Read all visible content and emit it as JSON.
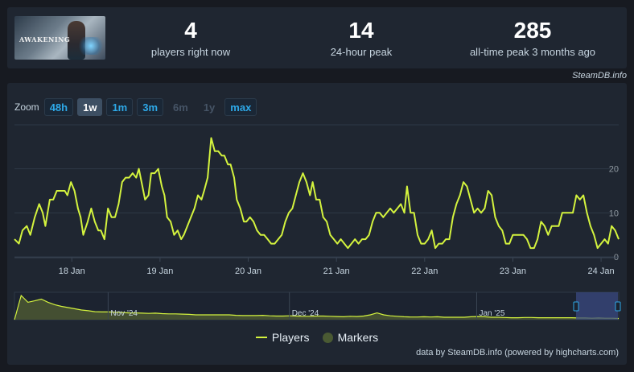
{
  "stats": [
    {
      "value": "4",
      "label": "players right now"
    },
    {
      "value": "14",
      "label": "24-hour peak"
    },
    {
      "value": "285",
      "label": "all-time peak 3 months ago"
    }
  ],
  "thumbnail": {
    "logo_text": "AWAKENING"
  },
  "credit_top": "SteamDB.info",
  "zoom": {
    "label": "Zoom",
    "buttons": [
      {
        "label": "48h",
        "state": "enabled"
      },
      {
        "label": "1w",
        "state": "active"
      },
      {
        "label": "1m",
        "state": "enabled"
      },
      {
        "label": "3m",
        "state": "enabled"
      },
      {
        "label": "6m",
        "state": "disabled"
      },
      {
        "label": "1y",
        "state": "disabled"
      },
      {
        "label": "max",
        "state": "enabled"
      }
    ]
  },
  "legend": {
    "players": "Players",
    "markers": "Markers"
  },
  "credit_bottom": "data by SteamDB.info (powered by highcharts.com)",
  "colors": {
    "series": "#d4f33e",
    "markers": "#4a5a33",
    "navigator_fill": "#4b5733",
    "nav_selection": "#3a4a80"
  },
  "chart_data": {
    "type": "line",
    "x_ticks": [
      "18 Jan",
      "19 Jan",
      "20 Jan",
      "21 Jan",
      "22 Jan",
      "23 Jan",
      "24 Jan"
    ],
    "y_ticks": [
      0,
      10,
      20
    ],
    "ylim": [
      0,
      30
    ],
    "xlim": [
      -0.65,
      6.2
    ],
    "series": [
      {
        "name": "Players",
        "points": [
          [
            -0.65,
            4
          ],
          [
            -0.6,
            3
          ],
          [
            -0.56,
            6
          ],
          [
            -0.51,
            7
          ],
          [
            -0.47,
            5
          ],
          [
            -0.42,
            9
          ],
          [
            -0.37,
            12
          ],
          [
            -0.33,
            10
          ],
          [
            -0.3,
            7
          ],
          [
            -0.25,
            13
          ],
          [
            -0.21,
            13
          ],
          [
            -0.17,
            15
          ],
          [
            -0.12,
            15
          ],
          [
            -0.08,
            15
          ],
          [
            -0.05,
            14
          ],
          [
            -0.01,
            17
          ],
          [
            0.03,
            15
          ],
          [
            0.07,
            11
          ],
          [
            0.1,
            9
          ],
          [
            0.13,
            5
          ],
          [
            0.18,
            8
          ],
          [
            0.22,
            11
          ],
          [
            0.26,
            8
          ],
          [
            0.3,
            6
          ],
          [
            0.33,
            6
          ],
          [
            0.37,
            4
          ],
          [
            0.41,
            11
          ],
          [
            0.45,
            9
          ],
          [
            0.49,
            9
          ],
          [
            0.53,
            12
          ],
          [
            0.57,
            17
          ],
          [
            0.61,
            18
          ],
          [
            0.65,
            18
          ],
          [
            0.69,
            19
          ],
          [
            0.73,
            18
          ],
          [
            0.76,
            20
          ],
          [
            0.8,
            16
          ],
          [
            0.83,
            13
          ],
          [
            0.87,
            14
          ],
          [
            0.9,
            19
          ],
          [
            0.94,
            19
          ],
          [
            0.98,
            20
          ],
          [
            1.02,
            16
          ],
          [
            1.05,
            14
          ],
          [
            1.08,
            9
          ],
          [
            1.12,
            8
          ],
          [
            1.16,
            5
          ],
          [
            1.2,
            6
          ],
          [
            1.24,
            4
          ],
          [
            1.27,
            5
          ],
          [
            1.31,
            7
          ],
          [
            1.35,
            9
          ],
          [
            1.39,
            11
          ],
          [
            1.43,
            14
          ],
          [
            1.47,
            13
          ],
          [
            1.5,
            15
          ],
          [
            1.54,
            18
          ],
          [
            1.58,
            27
          ],
          [
            1.62,
            24
          ],
          [
            1.66,
            24
          ],
          [
            1.7,
            23
          ],
          [
            1.73,
            23
          ],
          [
            1.77,
            21
          ],
          [
            1.8,
            21
          ],
          [
            1.84,
            18
          ],
          [
            1.87,
            13
          ],
          [
            1.91,
            11
          ],
          [
            1.95,
            8
          ],
          [
            1.98,
            8
          ],
          [
            2.02,
            9
          ],
          [
            2.06,
            8
          ],
          [
            2.1,
            6
          ],
          [
            2.14,
            5
          ],
          [
            2.18,
            5
          ],
          [
            2.22,
            4
          ],
          [
            2.26,
            3
          ],
          [
            2.3,
            3
          ],
          [
            2.34,
            4
          ],
          [
            2.38,
            5
          ],
          [
            2.42,
            8
          ],
          [
            2.46,
            10
          ],
          [
            2.5,
            11
          ],
          [
            2.54,
            14
          ],
          [
            2.58,
            17
          ],
          [
            2.62,
            19
          ],
          [
            2.66,
            17
          ],
          [
            2.7,
            14
          ],
          [
            2.73,
            17
          ],
          [
            2.77,
            13
          ],
          [
            2.81,
            13
          ],
          [
            2.85,
            9
          ],
          [
            2.89,
            8
          ],
          [
            2.93,
            5
          ],
          [
            2.97,
            4
          ],
          [
            3.01,
            3
          ],
          [
            3.05,
            4
          ],
          [
            3.09,
            3
          ],
          [
            3.13,
            2
          ],
          [
            3.17,
            3
          ],
          [
            3.21,
            4
          ],
          [
            3.25,
            3
          ],
          [
            3.29,
            4
          ],
          [
            3.33,
            4
          ],
          [
            3.37,
            5
          ],
          [
            3.41,
            8
          ],
          [
            3.45,
            10
          ],
          [
            3.49,
            10
          ],
          [
            3.53,
            9
          ],
          [
            3.57,
            10
          ],
          [
            3.61,
            11
          ],
          [
            3.65,
            10
          ],
          [
            3.69,
            11
          ],
          [
            3.73,
            12
          ],
          [
            3.77,
            10
          ],
          [
            3.8,
            16
          ],
          [
            3.84,
            10
          ],
          [
            3.88,
            10
          ],
          [
            3.92,
            5
          ],
          [
            3.96,
            3
          ],
          [
            4.0,
            3
          ],
          [
            4.04,
            4
          ],
          [
            4.08,
            6
          ],
          [
            4.12,
            2
          ],
          [
            4.16,
            3
          ],
          [
            4.2,
            3
          ],
          [
            4.24,
            4
          ],
          [
            4.28,
            4
          ],
          [
            4.32,
            9
          ],
          [
            4.36,
            12
          ],
          [
            4.4,
            14
          ],
          [
            4.44,
            17
          ],
          [
            4.48,
            16
          ],
          [
            4.52,
            13
          ],
          [
            4.56,
            10
          ],
          [
            4.6,
            11
          ],
          [
            4.64,
            10
          ],
          [
            4.68,
            11
          ],
          [
            4.72,
            15
          ],
          [
            4.76,
            14
          ],
          [
            4.8,
            9
          ],
          [
            4.84,
            7
          ],
          [
            4.88,
            6
          ],
          [
            4.92,
            3
          ],
          [
            4.96,
            3
          ],
          [
            5.0,
            5
          ],
          [
            5.04,
            5
          ],
          [
            5.08,
            5
          ],
          [
            5.12,
            5
          ],
          [
            5.16,
            4
          ],
          [
            5.2,
            2
          ],
          [
            5.24,
            2
          ],
          [
            5.28,
            4
          ],
          [
            5.32,
            8
          ],
          [
            5.36,
            7
          ],
          [
            5.4,
            5
          ],
          [
            5.44,
            7
          ],
          [
            5.48,
            7
          ],
          [
            5.52,
            7
          ],
          [
            5.56,
            10
          ],
          [
            5.6,
            10
          ],
          [
            5.64,
            10
          ],
          [
            5.68,
            10
          ],
          [
            5.72,
            14
          ],
          [
            5.76,
            13
          ],
          [
            5.8,
            14
          ],
          [
            5.84,
            10
          ],
          [
            5.88,
            7
          ],
          [
            5.92,
            5
          ],
          [
            5.96,
            2
          ],
          [
            6.0,
            3
          ],
          [
            6.04,
            4
          ],
          [
            6.08,
            3
          ],
          [
            6.12,
            7
          ],
          [
            6.16,
            6
          ],
          [
            6.2,
            4
          ]
        ]
      }
    ],
    "navigator": {
      "x_ticks": [
        "Nov '24",
        "Dec '24",
        "Jan '25"
      ],
      "points": [
        0,
        1,
        0.72,
        0.78,
        0.85,
        0.72,
        0.62,
        0.55,
        0.5,
        0.45,
        0.4,
        0.37,
        0.33,
        0.32,
        0.32,
        0.31,
        0.3,
        0.28,
        0.28,
        0.27,
        0.26,
        0.27,
        0.25,
        0.24,
        0.24,
        0.23,
        0.22,
        0.2,
        0.2,
        0.2,
        0.2,
        0.2,
        0.2,
        0.18,
        0.17,
        0.17,
        0.17,
        0.18,
        0.16,
        0.15,
        0.15,
        0.16,
        0.15,
        0.14,
        0.14,
        0.15,
        0.15,
        0.14,
        0.13,
        0.12,
        0.14,
        0.13,
        0.15,
        0.2,
        0.28,
        0.2,
        0.16,
        0.14,
        0.12,
        0.11,
        0.11,
        0.12,
        0.11,
        0.12,
        0.1,
        0.1,
        0.1,
        0.1,
        0.12,
        0.13,
        0.12,
        0.1,
        0.1,
        0.09,
        0.08,
        0.08,
        0.09,
        0.09,
        0.08,
        0.08,
        0.08,
        0.08,
        0.08,
        0.08,
        0.07,
        0.07,
        0.06,
        0.07,
        0.06,
        0.06,
        0.05
      ]
    }
  }
}
